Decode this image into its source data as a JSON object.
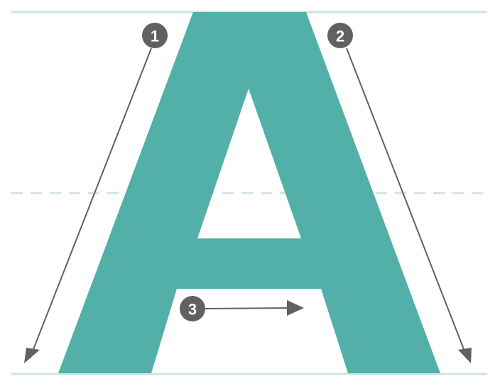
{
  "diagram": {
    "letter": "A",
    "colors": {
      "letter_fill": "#52b0a8",
      "guide_line": "#cfe3de",
      "arrow": "#616161",
      "badge_fill": "#616161",
      "badge_text": "#ffffff",
      "background": "#ffffff"
    },
    "guides": [
      {
        "kind": "top-line",
        "style": "solid"
      },
      {
        "kind": "middle-line",
        "style": "dashed"
      },
      {
        "kind": "baseline",
        "style": "solid"
      }
    ],
    "strokes": [
      {
        "number": "1",
        "direction": "down-left"
      },
      {
        "number": "2",
        "direction": "down-right"
      },
      {
        "number": "3",
        "direction": "right"
      }
    ]
  }
}
